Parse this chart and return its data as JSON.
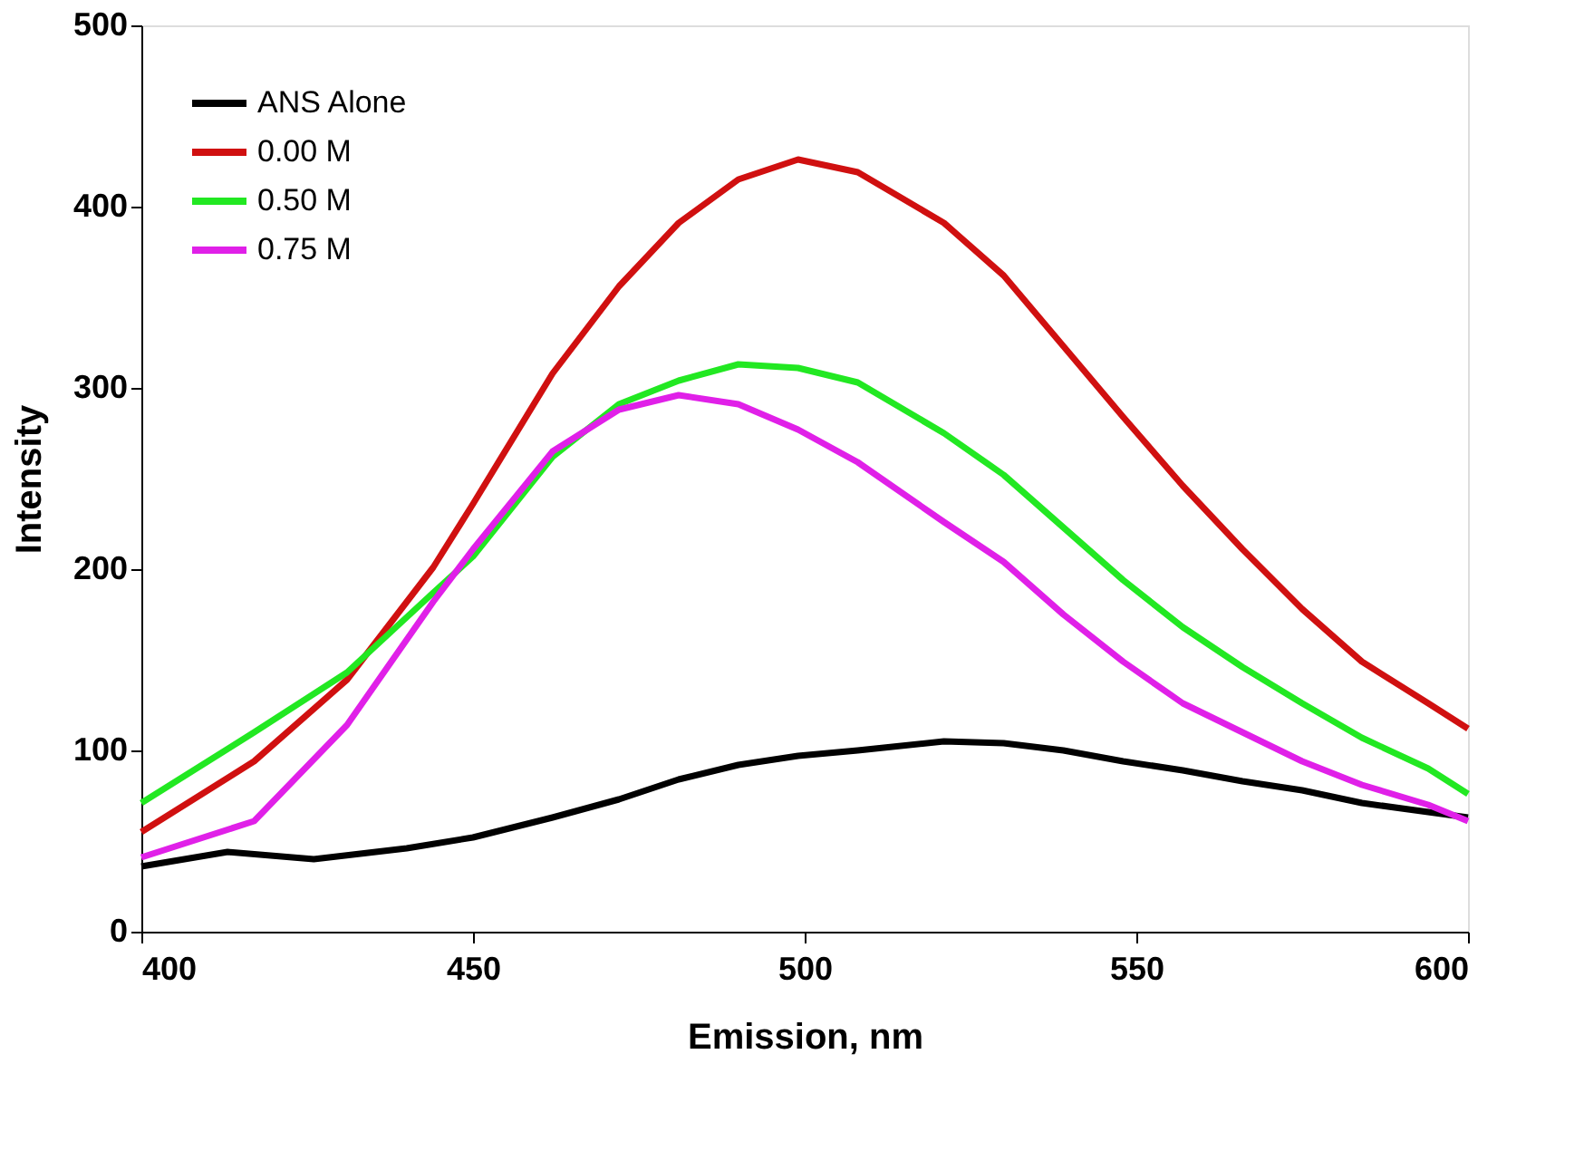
{
  "chart_data": {
    "type": "line",
    "xlabel": "Emission, nm",
    "ylabel": "Intensity",
    "xlim": [
      400,
      600
    ],
    "ylim": [
      0,
      500
    ],
    "xticks": [
      400,
      450,
      500,
      550,
      600
    ],
    "yticks": [
      0,
      100,
      200,
      300,
      400,
      500
    ],
    "grid": false,
    "legend": "top left",
    "line_style": "solid",
    "marker": "none",
    "x": [
      400,
      417,
      431,
      444,
      450,
      462,
      472,
      481,
      490,
      499,
      508,
      521,
      530,
      539,
      548,
      557,
      566,
      575,
      584,
      594,
      600
    ],
    "series": [
      {
        "name": "ANS Alone",
        "color": "#000000",
        "x": [
          400,
          413,
          426,
          440,
          450,
          462,
          472,
          481,
          490,
          499,
          508,
          521,
          530,
          539,
          548,
          557,
          566,
          575,
          584,
          594,
          600
        ],
        "values": [
          36,
          44,
          40,
          46,
          52,
          63,
          73,
          84,
          92,
          97,
          100,
          105,
          104,
          100,
          94,
          89,
          83,
          78,
          71,
          66,
          63
        ]
      },
      {
        "name": "0.00 M",
        "color": "#d01010",
        "values": [
          55,
          94,
          139,
          201,
          236,
          308,
          356,
          391,
          415,
          426,
          419,
          391,
          362,
          323,
          284,
          246,
          211,
          178,
          149,
          126,
          112
        ]
      },
      {
        "name": "0.50 M",
        "color": "#22e822",
        "values": [
          71,
          110,
          143,
          187,
          207,
          262,
          291,
          304,
          313,
          311,
          303,
          275,
          252,
          223,
          194,
          168,
          146,
          126,
          107,
          90,
          76
        ]
      },
      {
        "name": "0.75 M",
        "color": "#e020e8",
        "values": [
          41,
          61,
          114,
          182,
          211,
          265,
          288,
          296,
          291,
          277,
          259,
          226,
          204,
          175,
          149,
          126,
          110,
          94,
          81,
          70,
          61
        ]
      }
    ]
  }
}
